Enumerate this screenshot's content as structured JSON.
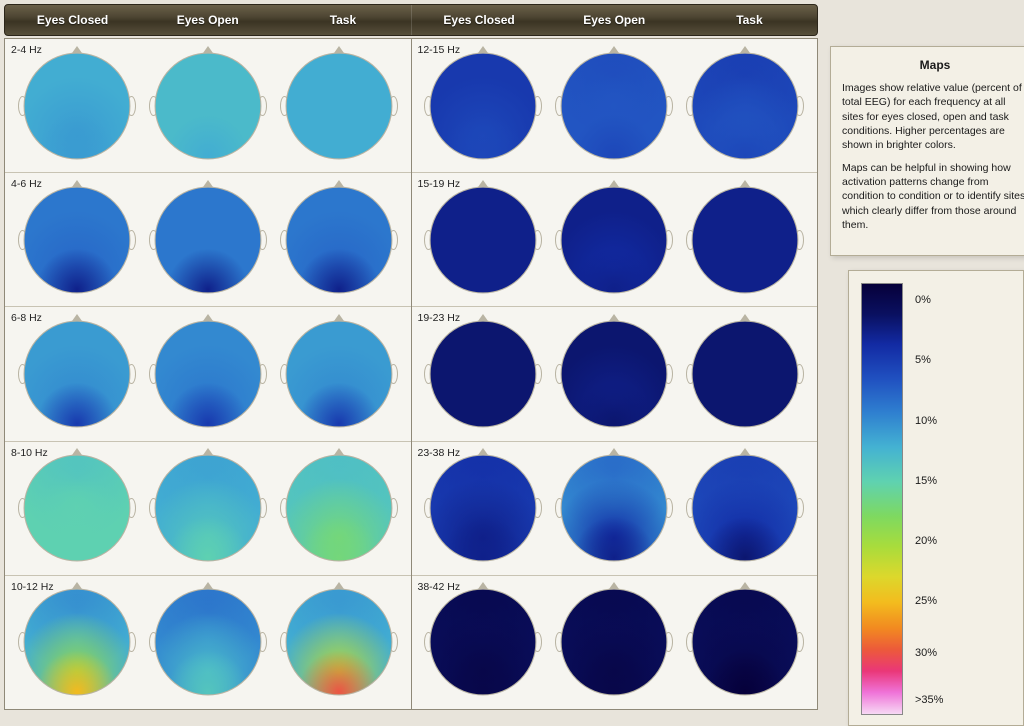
{
  "header": {
    "columns": [
      "Eyes Closed",
      "Eyes Open",
      "Task"
    ]
  },
  "info_panel": {
    "title": "Maps",
    "para1": "Images show relative value (percent of total EEG) for each frequency at all sites for eyes closed, open and task conditions. Higher percentages are shown in brighter colors.",
    "para2": "Maps can be helpful in showing how activation patterns change from condition to condition or to identify sites which clearly differ from those around them."
  },
  "legend": {
    "ticks": [
      {
        "pct": 4,
        "label": "0%"
      },
      {
        "pct": 18,
        "label": "5%"
      },
      {
        "pct": 32,
        "label": "10%"
      },
      {
        "pct": 46,
        "label": "15%"
      },
      {
        "pct": 60,
        "label": "20%"
      },
      {
        "pct": 74,
        "label": "25%"
      },
      {
        "pct": 86,
        "label": "30%"
      },
      {
        "pct": 97,
        "label": ">35%"
      }
    ]
  },
  "colormap_note": "percent value → hue along jet-like map used below",
  "left_panel": {
    "bands": [
      {
        "label": "2-4 Hz",
        "maps": [
          {
            "front": 13,
            "mid": 13,
            "back": 12,
            "occ": 12
          },
          {
            "front": 14,
            "mid": 14,
            "back": 14,
            "occ": 13
          },
          {
            "front": 13,
            "mid": 13,
            "back": 13,
            "occ": 13
          }
        ]
      },
      {
        "label": "4-6 Hz",
        "maps": [
          {
            "front": 10,
            "mid": 10,
            "back": 9,
            "occ": 4
          },
          {
            "front": 10,
            "mid": 10,
            "back": 10,
            "occ": 4
          },
          {
            "front": 10,
            "mid": 10,
            "back": 9,
            "occ": 4
          }
        ]
      },
      {
        "label": "6-8 Hz",
        "maps": [
          {
            "front": 12,
            "mid": 12,
            "back": 11,
            "occ": 6
          },
          {
            "front": 11,
            "mid": 11,
            "back": 10,
            "occ": 6
          },
          {
            "front": 12,
            "mid": 12,
            "back": 11,
            "occ": 6
          }
        ]
      },
      {
        "label": "8-10 Hz",
        "maps": [
          {
            "front": 14,
            "mid": 16,
            "back": 16,
            "occ": 16
          },
          {
            "front": 12,
            "mid": 13,
            "back": 15,
            "occ": 16
          },
          {
            "front": 14,
            "mid": 15,
            "back": 18,
            "occ": 18
          }
        ]
      },
      {
        "label": "10-12 Hz",
        "maps": [
          {
            "front": 10,
            "mid": 13,
            "back": 20,
            "occ": 26
          },
          {
            "front": 9,
            "mid": 11,
            "back": 14,
            "occ": 15
          },
          {
            "front": 11,
            "mid": 13,
            "back": 22,
            "occ": 30
          }
        ]
      }
    ]
  },
  "right_panel": {
    "bands": [
      {
        "label": "12-15 Hz",
        "maps": [
          {
            "front": 6,
            "mid": 6,
            "back": 7,
            "occ": 7
          },
          {
            "front": 7,
            "mid": 8,
            "back": 8,
            "occ": 7
          },
          {
            "front": 6,
            "mid": 7,
            "back": 8,
            "occ": 7
          }
        ]
      },
      {
        "label": "15-19 Hz",
        "maps": [
          {
            "front": 4,
            "mid": 4,
            "back": 4,
            "occ": 4
          },
          {
            "front": 4,
            "mid": 4,
            "back": 5,
            "occ": 4
          },
          {
            "front": 4,
            "mid": 4,
            "back": 4,
            "occ": 4
          }
        ]
      },
      {
        "label": "19-23 Hz",
        "maps": [
          {
            "front": 3,
            "mid": 3,
            "back": 3,
            "occ": 3
          },
          {
            "front": 3,
            "mid": 3,
            "back": 4,
            "occ": 3
          },
          {
            "front": 3,
            "mid": 3,
            "back": 3,
            "occ": 3
          }
        ]
      },
      {
        "label": "23-38 Hz",
        "maps": [
          {
            "front": 5,
            "mid": 6,
            "back": 4,
            "occ": 4
          },
          {
            "front": 8,
            "mid": 11,
            "back": 5,
            "occ": 4
          },
          {
            "front": 6,
            "mid": 7,
            "back": 5,
            "occ": 3
          }
        ]
      },
      {
        "label": "38-42 Hz",
        "maps": [
          {
            "front": 1,
            "mid": 2,
            "back": 1,
            "occ": 1
          },
          {
            "front": 1,
            "mid": 2,
            "back": 1,
            "occ": 1
          },
          {
            "front": 1,
            "mid": 2,
            "back": 1,
            "occ": 0
          }
        ]
      }
    ]
  },
  "style": {
    "page_bg": "#e8e4db",
    "panel_bg": "#f6f5f0",
    "panel_border": "#8f8978",
    "row_divider": "#c8c3b3",
    "head_outline": "#b9b4a3",
    "header_text_color": "#ffffff",
    "label_font_size_pt": 8,
    "header_font_size_pt": 9
  }
}
